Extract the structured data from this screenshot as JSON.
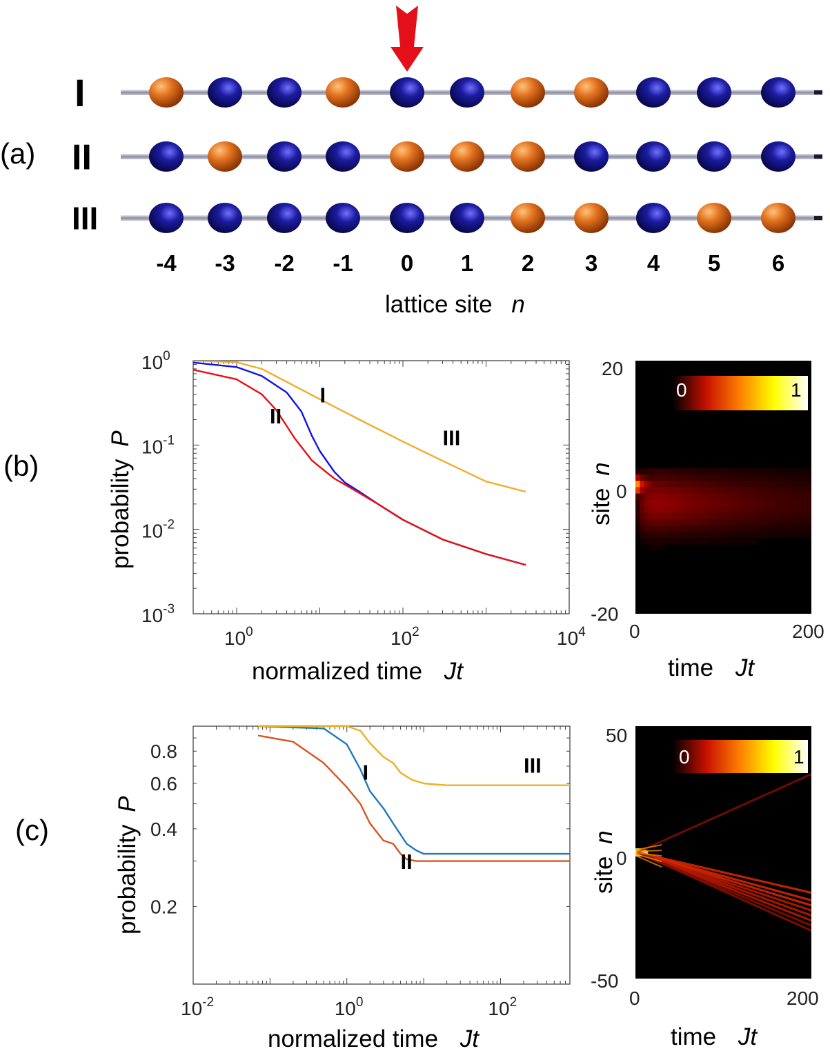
{
  "panel_a": {
    "label": "(a)",
    "rows": [
      {
        "name": "I",
        "sites": [
          "o",
          "b",
          "b",
          "o",
          "b",
          "b",
          "o",
          "o",
          "b",
          "b",
          "b"
        ]
      },
      {
        "name": "II",
        "sites": [
          "b",
          "o",
          "b",
          "b",
          "o",
          "o",
          "o",
          "b",
          "b",
          "b",
          "b"
        ]
      },
      {
        "name": "III",
        "sites": [
          "b",
          "b",
          "b",
          "b",
          "b",
          "b",
          "o",
          "o",
          "b",
          "o",
          "o"
        ]
      }
    ],
    "site_labels": [
      "-4",
      "-3",
      "-2",
      "-1",
      "0",
      "1",
      "2",
      "3",
      "4",
      "5",
      "6"
    ],
    "axis_title_text": "lattice site",
    "axis_title_var": "n",
    "arrow_site": "0",
    "colors": {
      "orange": "#d9661a",
      "blue": "#14147a",
      "rod": "#9a9aaa",
      "arrow": "#e3101c"
    }
  },
  "chart_data": [
    {
      "type": "line",
      "panel": "(b)",
      "xscale": "log",
      "yscale": "log",
      "xlim": [
        0.3,
        10000
      ],
      "ylim": [
        0.001,
        1
      ],
      "x_ticks": [
        {
          "base": "10",
          "exp": "0"
        },
        {
          "base": "10",
          "exp": "2"
        },
        {
          "base": "10",
          "exp": "4"
        }
      ],
      "y_ticks": [
        {
          "base": "10",
          "exp": "0"
        },
        {
          "base": "10",
          "exp": "-1"
        },
        {
          "base": "10",
          "exp": "-2"
        },
        {
          "base": "10",
          "exp": "-3"
        }
      ],
      "xlabel": "normalized time",
      "xlabel_var": "Jt",
      "ylabel": "probability",
      "ylabel_var": "P",
      "series": [
        {
          "name": "I",
          "color": "#1010ee",
          "x": [
            0.3,
            1,
            2,
            4,
            6,
            8,
            10,
            15,
            20,
            30,
            50,
            100,
            300,
            1000,
            3000
          ],
          "values": [
            0.95,
            0.84,
            0.66,
            0.42,
            0.25,
            0.13,
            0.085,
            0.048,
            0.036,
            0.028,
            0.02,
            0.013,
            0.0076,
            0.0051,
            0.0038
          ]
        },
        {
          "name": "II",
          "color": "#e81010",
          "x": [
            0.3,
            1,
            2,
            3,
            5,
            8,
            10,
            15,
            20,
            30,
            50,
            100,
            300,
            1000,
            3000
          ],
          "values": [
            0.78,
            0.6,
            0.4,
            0.26,
            0.12,
            0.066,
            0.055,
            0.04,
            0.034,
            0.027,
            0.02,
            0.013,
            0.0076,
            0.0051,
            0.0038
          ]
        },
        {
          "name": "III",
          "color": "#f2ac2c",
          "x": [
            0.3,
            1,
            2,
            5,
            10,
            30,
            100,
            300,
            1000,
            3000
          ],
          "values": [
            1.0,
            0.96,
            0.8,
            0.5,
            0.35,
            0.2,
            0.11,
            0.065,
            0.037,
            0.028
          ]
        }
      ],
      "curve_labels": [
        {
          "text": "II",
          "x": 2.5,
          "y": 0.18
        },
        {
          "text": "I",
          "x": 10,
          "y": 0.32
        },
        {
          "text": "III",
          "x": 300,
          "y": 0.1
        }
      ]
    },
    {
      "type": "heatmap",
      "panel": "(b)",
      "xlim": [
        0,
        200
      ],
      "ylim": [
        -20,
        20
      ],
      "x_ticks": [
        "0",
        "200"
      ],
      "y_ticks": [
        "20",
        "0",
        "-20"
      ],
      "xlabel": "time",
      "xlabel_var": "Jt",
      "ylabel": "site",
      "ylabel_var": "n",
      "colorbar": {
        "min_label": "0",
        "max_label": "1"
      },
      "feature": "localized wavepacket at n=0 decaying in time, spreading to about n=-13..3"
    },
    {
      "type": "line",
      "panel": "(c)",
      "xscale": "log",
      "yscale": "log",
      "xlim": [
        0.01,
        800
      ],
      "ylim": [
        0.1,
        1.0
      ],
      "x_ticks": [
        {
          "base": "10",
          "exp": "-2"
        },
        {
          "base": "10",
          "exp": "0"
        },
        {
          "base": "10",
          "exp": "2"
        }
      ],
      "y_ticks": [
        "0.8",
        "0.6",
        "0.4",
        "0.2"
      ],
      "y_tick_values": [
        0.8,
        0.6,
        0.4,
        0.2
      ],
      "xlabel": "normalized time",
      "xlabel_var": "Jt",
      "ylabel": "probability",
      "ylabel_var": "P",
      "series": [
        {
          "name": "I",
          "color": "#1e78bf",
          "x": [
            0.07,
            0.5,
            1,
            1.5,
            2,
            3,
            4,
            5,
            6,
            8,
            10,
            20,
            50,
            100,
            800
          ],
          "values": [
            1.0,
            0.98,
            0.85,
            0.68,
            0.56,
            0.48,
            0.42,
            0.38,
            0.35,
            0.33,
            0.32,
            0.32,
            0.32,
            0.32,
            0.32
          ]
        },
        {
          "name": "II",
          "color": "#d9541e",
          "x": [
            0.07,
            0.2,
            0.5,
            1,
            1.5,
            2,
            3,
            4,
            5,
            6,
            8,
            20,
            100,
            800
          ],
          "values": [
            0.92,
            0.87,
            0.72,
            0.58,
            0.5,
            0.42,
            0.36,
            0.35,
            0.32,
            0.305,
            0.3,
            0.3,
            0.3,
            0.3
          ]
        },
        {
          "name": "III",
          "color": "#edb120",
          "x": [
            0.07,
            1,
            1.5,
            2,
            3,
            4,
            5,
            7,
            10,
            20,
            100,
            800
          ],
          "values": [
            1.0,
            1.0,
            0.96,
            0.86,
            0.76,
            0.72,
            0.66,
            0.62,
            0.6,
            0.59,
            0.59,
            0.59
          ]
        }
      ],
      "curve_labels": [
        {
          "text": "I",
          "x": 1.6,
          "y": 0.62
        },
        {
          "text": "II",
          "x": 5,
          "y": 0.28
        },
        {
          "text": "III",
          "x": 200,
          "y": 0.66
        }
      ]
    },
    {
      "type": "heatmap",
      "panel": "(c)",
      "xlim": [
        0,
        200
      ],
      "ylim": [
        -50,
        50
      ],
      "x_ticks": [
        "0",
        "200"
      ],
      "y_ticks": [
        "50",
        "0",
        "-50"
      ],
      "xlabel": "time",
      "xlabel_var": "Jt",
      "ylabel": "site",
      "ylabel_var": "n",
      "colorbar": {
        "min_label": "0",
        "max_label": "1"
      },
      "feature": "ballistic light-cone spreading from n=0: one faint ray upward to about n=30, a bundle of rays downward to about n=-30"
    }
  ],
  "panel_labels": {
    "b": "(b)",
    "c": "(c)"
  }
}
